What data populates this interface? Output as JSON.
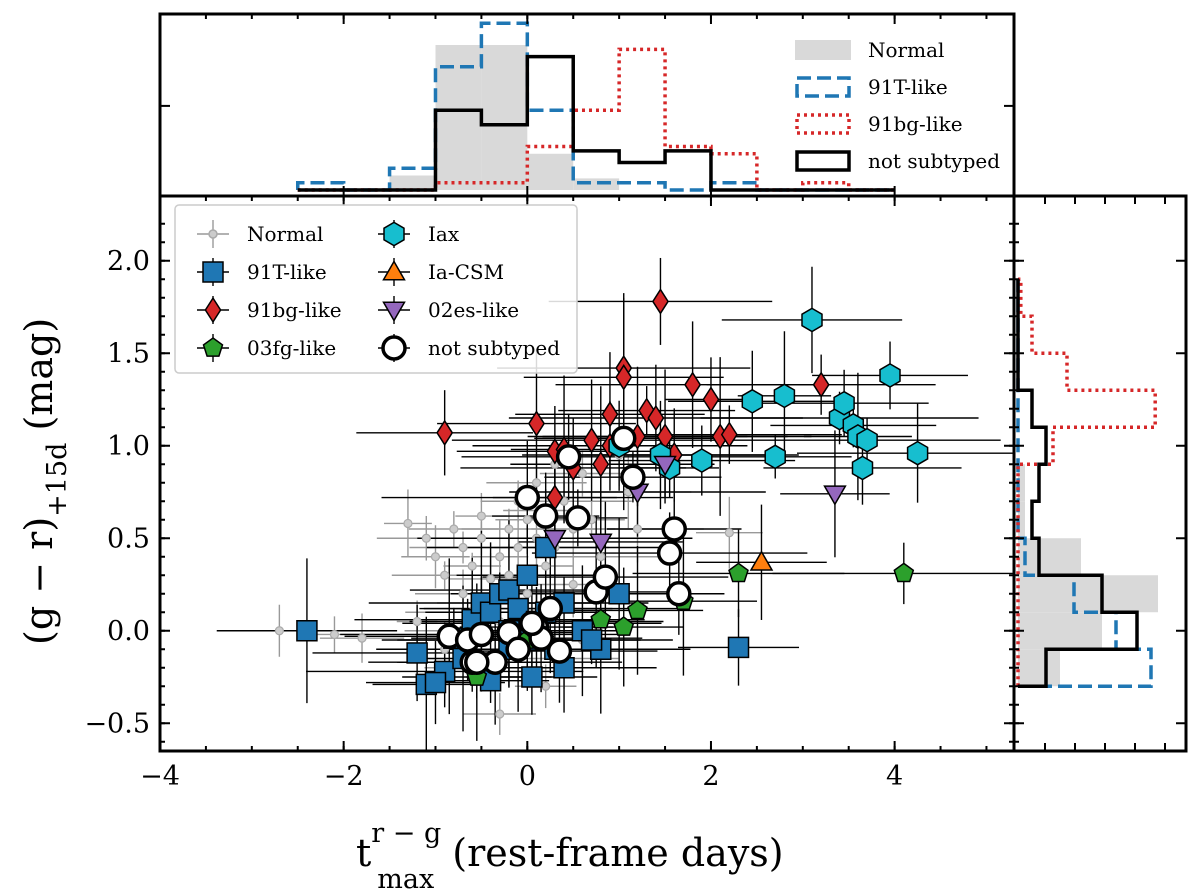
{
  "chart_data": {
    "type": "scatter",
    "xlabel": {
      "main": "t",
      "sup": "r − g",
      "sub": "max",
      "rest": " (rest-frame days)"
    },
    "ylabel": {
      "main": "(g − r)",
      "sub": "+15d",
      "rest": " (mag)"
    },
    "xlim": [
      -4,
      5.3
    ],
    "ylim": [
      -0.65,
      2.35
    ],
    "xticks": [
      -4,
      -2,
      0,
      2,
      4
    ],
    "xtick_labels": [
      "−4",
      "−2",
      "0",
      "2",
      "4"
    ],
    "yticks": [
      -0.5,
      0.0,
      0.5,
      1.0,
      1.5,
      2.0
    ],
    "ytick_labels": [
      "−0.5",
      "0.0",
      "0.5",
      "1.0",
      "1.5",
      "2.0"
    ],
    "legend_position": "upper-left",
    "series": [
      {
        "name": "Normal",
        "marker": "circle",
        "color": "#cccccc",
        "edge": "#aaaaaa",
        "size": 8,
        "points": [
          [
            -2.7,
            0.0
          ],
          [
            -2.1,
            -0.02
          ],
          [
            -1.8,
            -0.04
          ],
          [
            -1.3,
            0.58
          ],
          [
            -1.1,
            0.5
          ],
          [
            -1.0,
            0.4
          ],
          [
            -0.9,
            0.3
          ],
          [
            -0.8,
            0.55
          ],
          [
            -0.7,
            0.45
          ],
          [
            -0.7,
            0.2
          ],
          [
            -0.6,
            0.35
          ],
          [
            -0.6,
            0.1
          ],
          [
            -0.5,
            0.62
          ],
          [
            -0.5,
            0.5
          ],
          [
            -0.4,
            0.28
          ],
          [
            -0.4,
            0.15
          ],
          [
            -0.3,
            0.4
          ],
          [
            -0.3,
            0.05
          ],
          [
            -0.2,
            0.55
          ],
          [
            -0.2,
            0.3
          ],
          [
            -0.1,
            0.7
          ],
          [
            -0.1,
            0.45
          ],
          [
            0.0,
            0.6
          ],
          [
            0.0,
            0.2
          ],
          [
            0.1,
            0.8
          ],
          [
            0.1,
            0.5
          ],
          [
            0.2,
            0.35
          ],
          [
            0.2,
            0.65
          ],
          [
            0.3,
            0.9
          ],
          [
            0.3,
            0.45
          ],
          [
            0.4,
            0.7
          ],
          [
            0.5,
            0.55
          ],
          [
            0.5,
            0.25
          ],
          [
            0.6,
            0.85
          ],
          [
            0.7,
            0.6
          ],
          [
            0.8,
            0.4
          ],
          [
            1.0,
            0.95
          ],
          [
            1.1,
            0.75
          ],
          [
            1.2,
            0.55
          ],
          [
            -0.9,
            -0.1
          ],
          [
            -0.6,
            -0.2
          ],
          [
            -0.3,
            -0.45
          ],
          [
            0.2,
            -0.3
          ],
          [
            0.4,
            -0.15
          ],
          [
            2.2,
            0.53
          ],
          [
            -1.2,
            0.05
          ],
          [
            -0.8,
            0.0
          ],
          [
            0.6,
            -0.05
          ]
        ]
      },
      {
        "name": "91T-like",
        "marker": "square",
        "color": "#1f77b4",
        "edge": "#000000",
        "size": 20,
        "points": [
          [
            -2.4,
            0.0
          ],
          [
            -1.2,
            -0.12
          ],
          [
            -1.1,
            -0.29
          ],
          [
            -0.9,
            -0.22
          ],
          [
            -0.8,
            -0.04
          ],
          [
            -0.6,
            0.06
          ],
          [
            -0.5,
            0.15
          ],
          [
            -0.4,
            0.1
          ],
          [
            -0.4,
            -0.27
          ],
          [
            -0.3,
            0.2
          ],
          [
            -0.2,
            0.22
          ],
          [
            -0.2,
            -0.1
          ],
          [
            -0.1,
            0.12
          ],
          [
            0.0,
            0.3
          ],
          [
            0.0,
            -0.05
          ],
          [
            0.05,
            -0.25
          ],
          [
            0.1,
            0.05
          ],
          [
            0.2,
            0.1
          ],
          [
            0.3,
            -0.1
          ],
          [
            0.4,
            0.15
          ],
          [
            0.4,
            -0.2
          ],
          [
            0.6,
            0.0
          ],
          [
            0.8,
            -0.1
          ],
          [
            1.0,
            0.2
          ],
          [
            0.2,
            0.45
          ],
          [
            -1.0,
            -0.28
          ],
          [
            -0.7,
            -0.15
          ],
          [
            0.7,
            -0.05
          ],
          [
            2.3,
            -0.09
          ],
          [
            -0.2,
            0.0
          ]
        ]
      },
      {
        "name": "91bg-like",
        "marker": "diamond",
        "color": "#d62728",
        "edge": "#000000",
        "size": 19,
        "points": [
          [
            -0.9,
            1.07
          ],
          [
            0.1,
            1.12
          ],
          [
            0.3,
            0.97
          ],
          [
            0.4,
            0.98
          ],
          [
            0.5,
            0.88
          ],
          [
            0.7,
            1.03
          ],
          [
            0.8,
            0.9
          ],
          [
            0.9,
            1.0
          ],
          [
            0.9,
            1.17
          ],
          [
            1.05,
            1.42
          ],
          [
            1.05,
            1.37
          ],
          [
            1.2,
            1.05
          ],
          [
            1.3,
            1.19
          ],
          [
            1.4,
            1.15
          ],
          [
            1.45,
            1.78
          ],
          [
            1.5,
            1.05
          ],
          [
            1.6,
            0.95
          ],
          [
            1.8,
            1.33
          ],
          [
            2.0,
            1.25
          ],
          [
            2.1,
            1.05
          ],
          [
            2.2,
            1.06
          ],
          [
            3.2,
            1.33
          ],
          [
            0.3,
            0.72
          ]
        ]
      },
      {
        "name": "03fg-like",
        "marker": "pentagon",
        "color": "#2ca02c",
        "edge": "#000000",
        "size": 19,
        "points": [
          [
            -0.55,
            -0.25
          ],
          [
            0.0,
            -0.05
          ],
          [
            0.8,
            0.06
          ],
          [
            1.05,
            0.02
          ],
          [
            1.2,
            0.11
          ],
          [
            1.7,
            0.16
          ],
          [
            2.3,
            0.31
          ],
          [
            4.1,
            0.31
          ]
        ]
      },
      {
        "name": "Iax",
        "marker": "hexagon",
        "color": "#17becf",
        "edge": "#000000",
        "size": 22,
        "points": [
          [
            1.0,
            1.0
          ],
          [
            1.45,
            0.95
          ],
          [
            1.55,
            0.88
          ],
          [
            1.9,
            0.92
          ],
          [
            2.45,
            1.24
          ],
          [
            2.7,
            0.94
          ],
          [
            2.8,
            1.27
          ],
          [
            3.1,
            1.68
          ],
          [
            3.4,
            1.15
          ],
          [
            3.45,
            1.23
          ],
          [
            3.55,
            1.11
          ],
          [
            3.6,
            1.05
          ],
          [
            3.7,
            1.03
          ],
          [
            3.65,
            0.88
          ],
          [
            3.95,
            1.38
          ],
          [
            4.25,
            0.96
          ]
        ]
      },
      {
        "name": "Ia-CSM",
        "marker": "triangle-up",
        "color": "#ff7f0e",
        "edge": "#000000",
        "size": 22,
        "points": [
          [
            2.55,
            0.37
          ]
        ]
      },
      {
        "name": "02es-like",
        "marker": "triangle-down",
        "color": "#9467bd",
        "edge": "#000000",
        "size": 22,
        "points": [
          [
            0.3,
            0.5
          ],
          [
            0.8,
            0.48
          ],
          [
            1.2,
            0.75
          ],
          [
            1.5,
            0.9
          ],
          [
            3.35,
            0.74
          ]
        ]
      },
      {
        "name": "not subtyped",
        "marker": "open-circle",
        "color": "#ffffff",
        "edge": "#000000",
        "size": 22,
        "points": [
          [
            -0.85,
            -0.03
          ],
          [
            -0.65,
            -0.05
          ],
          [
            -0.6,
            -0.17
          ],
          [
            -0.5,
            -0.02
          ],
          [
            -0.35,
            -0.17
          ],
          [
            -0.2,
            -0.01
          ],
          [
            -0.1,
            -0.1
          ],
          [
            0.0,
            0.72
          ],
          [
            0.1,
            0.02
          ],
          [
            0.15,
            -0.04
          ],
          [
            0.2,
            0.62
          ],
          [
            0.25,
            0.12
          ],
          [
            0.35,
            -0.11
          ],
          [
            0.45,
            0.94
          ],
          [
            0.55,
            0.61
          ],
          [
            0.75,
            0.21
          ],
          [
            0.85,
            0.29
          ],
          [
            1.05,
            1.04
          ],
          [
            1.15,
            0.83
          ],
          [
            1.55,
            0.42
          ],
          [
            1.6,
            0.55
          ],
          [
            1.65,
            0.2
          ],
          [
            -0.55,
            -0.17
          ],
          [
            0.05,
            0.04
          ]
        ]
      }
    ],
    "top_histogram": {
      "bins": [
        -2.5,
        -2.0,
        -1.5,
        -1.0,
        -0.5,
        0.0,
        0.5,
        1.0,
        1.5,
        2.0,
        2.5,
        3.0,
        3.5,
        4.0
      ],
      "series": [
        {
          "name": "Normal",
          "style": "filled",
          "color": "#d9d9d9",
          "counts": [
            0,
            0,
            0.1,
            1.0,
            1.0,
            0.25,
            0.08,
            0,
            0,
            0,
            0,
            0,
            0
          ]
        },
        {
          "name": "91T-like",
          "style": "dashed",
          "color": "#1f77b4",
          "counts": [
            0.05,
            0,
            0.15,
            0.85,
            1.15,
            0.55,
            0.05,
            0.05,
            0,
            0.05,
            0,
            0,
            0
          ]
        },
        {
          "name": "91bg-like",
          "style": "dotted",
          "color": "#d62728",
          "counts": [
            0,
            0,
            0,
            0.05,
            0.05,
            0.3,
            0.55,
            0.97,
            0.3,
            0.25,
            0,
            0.05,
            0
          ]
        },
        {
          "name": "not subtyped",
          "style": "solid",
          "color": "#000000",
          "counts": [
            0,
            0,
            0,
            0.55,
            0.45,
            0.92,
            0.27,
            0.19,
            0.27,
            0,
            0,
            0,
            0
          ]
        }
      ]
    },
    "right_histogram": {
      "bins": [
        -0.3,
        -0.1,
        0.1,
        0.3,
        0.5,
        0.7,
        0.9,
        1.1,
        1.3,
        1.5,
        1.7,
        1.9
      ],
      "series": [
        {
          "name": "Normal",
          "style": "filled",
          "color": "#d9d9d9",
          "counts": [
            0.3,
            0.6,
            1.0,
            0.45,
            0.05,
            0.05,
            0,
            0,
            0,
            0,
            0
          ]
        },
        {
          "name": "91T-like",
          "style": "dashed",
          "color": "#1f77b4",
          "counts": [
            0.95,
            0.7,
            0.4,
            0.05,
            0,
            0,
            0,
            0,
            0,
            0,
            0
          ]
        },
        {
          "name": "91bg-like",
          "style": "dotted",
          "color": "#d62728",
          "counts": [
            0,
            0,
            0,
            0,
            0,
            0,
            0.25,
            0.98,
            0.35,
            0.1,
            0.02
          ]
        },
        {
          "name": "not subtyped",
          "style": "solid",
          "color": "#000000",
          "counts": [
            0.2,
            0.85,
            0.6,
            0.15,
            0.1,
            0.15,
            0.2,
            0.1,
            0,
            0,
            0
          ]
        }
      ]
    }
  }
}
